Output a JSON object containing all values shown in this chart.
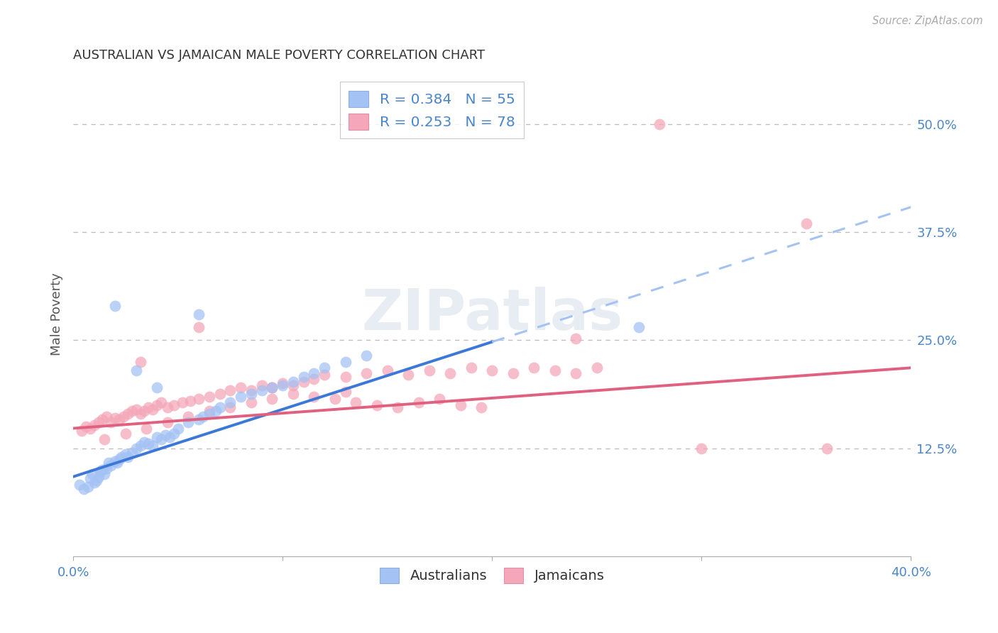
{
  "title": "AUSTRALIAN VS JAMAICAN MALE POVERTY CORRELATION CHART",
  "source": "Source: ZipAtlas.com",
  "ylabel": "Male Poverty",
  "y_tick_labels_right": [
    "12.5%",
    "25.0%",
    "37.5%",
    "50.0%"
  ],
  "y_tick_values_right": [
    0.125,
    0.25,
    0.375,
    0.5
  ],
  "xlim": [
    0.0,
    0.4
  ],
  "ylim": [
    0.0,
    0.56
  ],
  "background_color": "#ffffff",
  "grid_color": "#bbbbbb",
  "australian_color": "#a4c2f4",
  "jamaican_color": "#f4a7b9",
  "trendline_australian_solid_color": "#3c78d8",
  "trendline_australian_dashed_color": "#a4c2f4",
  "trendline_jamaican_color": "#e06080",
  "australians_N": 55,
  "jamaicans_N": 78,
  "aus_trendline_x0": 0.0,
  "aus_trendline_y0": 0.092,
  "aus_trendline_x1": 0.2,
  "aus_trendline_y1": 0.248,
  "aus_trendline_xdash_end": 0.4,
  "aus_trendline_ydash_end": 0.404,
  "jam_trendline_x0": 0.0,
  "jam_trendline_y0": 0.148,
  "jam_trendline_x1": 0.4,
  "jam_trendline_y1": 0.218,
  "australians_x": [
    0.003,
    0.005,
    0.007,
    0.008,
    0.009,
    0.01,
    0.011,
    0.012,
    0.013,
    0.014,
    0.015,
    0.016,
    0.017,
    0.018,
    0.02,
    0.021,
    0.022,
    0.023,
    0.025,
    0.026,
    0.028,
    0.03,
    0.032,
    0.034,
    0.036,
    0.038,
    0.04,
    0.042,
    0.044,
    0.046,
    0.048,
    0.05,
    0.055,
    0.06,
    0.062,
    0.065,
    0.068,
    0.07,
    0.075,
    0.08,
    0.085,
    0.09,
    0.095,
    0.1,
    0.105,
    0.11,
    0.115,
    0.12,
    0.13,
    0.14,
    0.03,
    0.04,
    0.06,
    0.27,
    0.02
  ],
  "australians_y": [
    0.083,
    0.078,
    0.08,
    0.09,
    0.095,
    0.085,
    0.088,
    0.092,
    0.098,
    0.1,
    0.095,
    0.102,
    0.108,
    0.105,
    0.11,
    0.108,
    0.112,
    0.115,
    0.118,
    0.115,
    0.12,
    0.125,
    0.128,
    0.132,
    0.13,
    0.128,
    0.138,
    0.135,
    0.14,
    0.138,
    0.142,
    0.148,
    0.155,
    0.158,
    0.162,
    0.165,
    0.168,
    0.172,
    0.178,
    0.185,
    0.188,
    0.192,
    0.195,
    0.198,
    0.202,
    0.208,
    0.212,
    0.218,
    0.225,
    0.232,
    0.215,
    0.195,
    0.28,
    0.265,
    0.29
  ],
  "jamaicans_x": [
    0.004,
    0.006,
    0.008,
    0.01,
    0.012,
    0.014,
    0.016,
    0.018,
    0.02,
    0.022,
    0.024,
    0.026,
    0.028,
    0.03,
    0.032,
    0.034,
    0.036,
    0.038,
    0.04,
    0.042,
    0.045,
    0.048,
    0.052,
    0.056,
    0.06,
    0.065,
    0.07,
    0.075,
    0.08,
    0.085,
    0.09,
    0.095,
    0.1,
    0.105,
    0.11,
    0.115,
    0.12,
    0.13,
    0.14,
    0.15,
    0.16,
    0.17,
    0.18,
    0.19,
    0.2,
    0.21,
    0.22,
    0.23,
    0.24,
    0.25,
    0.015,
    0.025,
    0.035,
    0.045,
    0.055,
    0.065,
    0.075,
    0.085,
    0.095,
    0.105,
    0.115,
    0.125,
    0.135,
    0.145,
    0.155,
    0.165,
    0.175,
    0.185,
    0.195,
    0.032,
    0.06,
    0.095,
    0.13,
    0.28,
    0.35,
    0.36,
    0.3,
    0.24
  ],
  "jamaicans_y": [
    0.145,
    0.15,
    0.148,
    0.152,
    0.155,
    0.158,
    0.162,
    0.155,
    0.16,
    0.158,
    0.162,
    0.165,
    0.168,
    0.17,
    0.165,
    0.168,
    0.172,
    0.17,
    0.175,
    0.178,
    0.172,
    0.175,
    0.178,
    0.18,
    0.182,
    0.185,
    0.188,
    0.192,
    0.195,
    0.192,
    0.198,
    0.195,
    0.2,
    0.198,
    0.202,
    0.205,
    0.21,
    0.208,
    0.212,
    0.215,
    0.21,
    0.215,
    0.212,
    0.218,
    0.215,
    0.212,
    0.218,
    0.215,
    0.212,
    0.218,
    0.135,
    0.142,
    0.148,
    0.155,
    0.162,
    0.168,
    0.172,
    0.178,
    0.182,
    0.188,
    0.185,
    0.182,
    0.178,
    0.175,
    0.172,
    0.178,
    0.182,
    0.175,
    0.172,
    0.225,
    0.265,
    0.195,
    0.19,
    0.5,
    0.385,
    0.125,
    0.125,
    0.252
  ]
}
